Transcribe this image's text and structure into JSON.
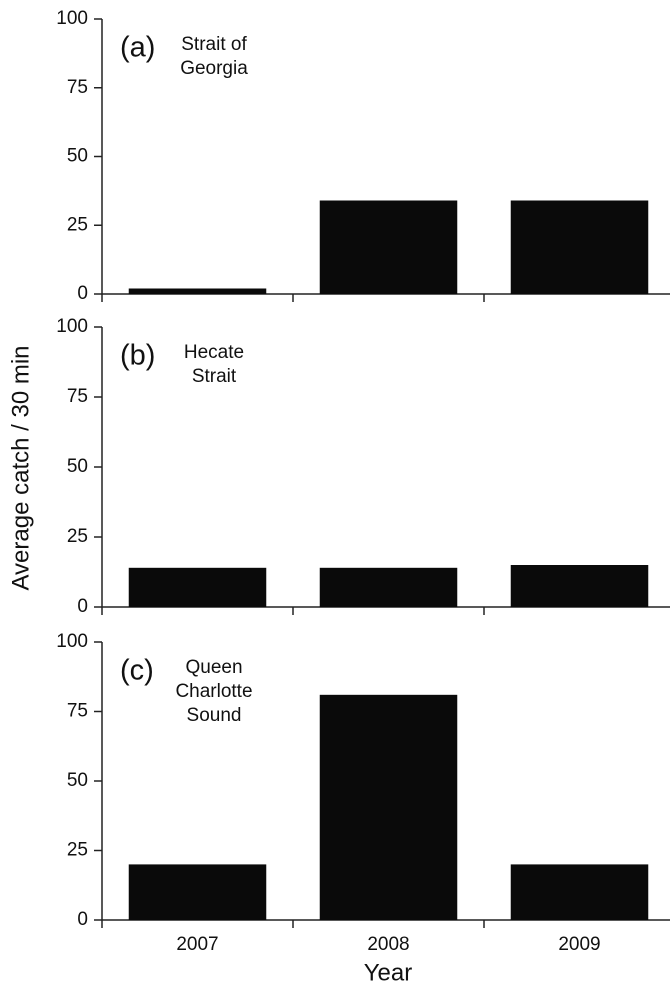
{
  "axis_labels": {
    "y": "Average catch / 30 min",
    "x": "Year"
  },
  "chart_data": [
    {
      "type": "bar",
      "label": "(a)",
      "title": [
        "Strait of",
        "Georgia"
      ],
      "values": [
        2,
        34,
        34
      ],
      "color": "#0a0a0a",
      "ylim": [
        0,
        100
      ],
      "yticks": [
        0,
        25,
        50,
        75,
        100
      ]
    },
    {
      "type": "bar",
      "label": "(b)",
      "title": [
        "Hecate",
        "Strait"
      ],
      "values": [
        14,
        14,
        15
      ],
      "color": "#0a0a0a",
      "ylim": [
        0,
        100
      ],
      "yticks": [
        0,
        25,
        50,
        75,
        100
      ]
    },
    {
      "type": "bar",
      "label": "(c)",
      "title": [
        "Queen",
        "Charlotte",
        "Sound"
      ],
      "categories": [
        "2007",
        "2008",
        "2009"
      ],
      "values": [
        20,
        81,
        20
      ],
      "color": "#0a0a0a",
      "ylim": [
        0,
        100
      ],
      "yticks": [
        0,
        25,
        50,
        75,
        100
      ]
    }
  ]
}
